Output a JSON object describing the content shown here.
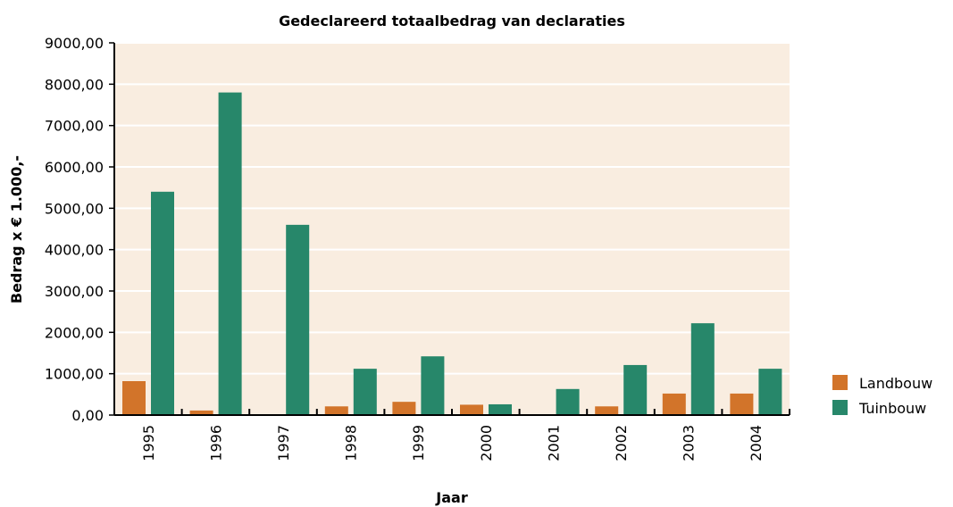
{
  "chart_data": {
    "type": "bar",
    "title": "Gedeclareerd totaalbedrag van declaraties",
    "xlabel": "Jaar",
    "ylabel": "Bedrag x € 1.000,-",
    "categories": [
      "1995",
      "1996",
      "1997",
      "1998",
      "1999",
      "2000",
      "2001",
      "2002",
      "2003",
      "2004"
    ],
    "series": [
      {
        "name": "Landbouw",
        "color": "#d2742a",
        "values": [
          820,
          110,
          0,
          210,
          320,
          250,
          0,
          210,
          520,
          520
        ]
      },
      {
        "name": "Tuinbouw",
        "color": "#27876a",
        "values": [
          5400,
          7800,
          4600,
          1120,
          1420,
          260,
          630,
          1210,
          2220,
          1120
        ]
      }
    ],
    "ylim": [
      0,
      9000
    ],
    "yticks": [
      "0,00",
      "1000,00",
      "2000,00",
      "3000,00",
      "4000,00",
      "5000,00",
      "6000,00",
      "7000,00",
      "8000,00",
      "9000,00"
    ],
    "grid": true,
    "legend_position": "right",
    "plot_background": "#f9ede0"
  }
}
